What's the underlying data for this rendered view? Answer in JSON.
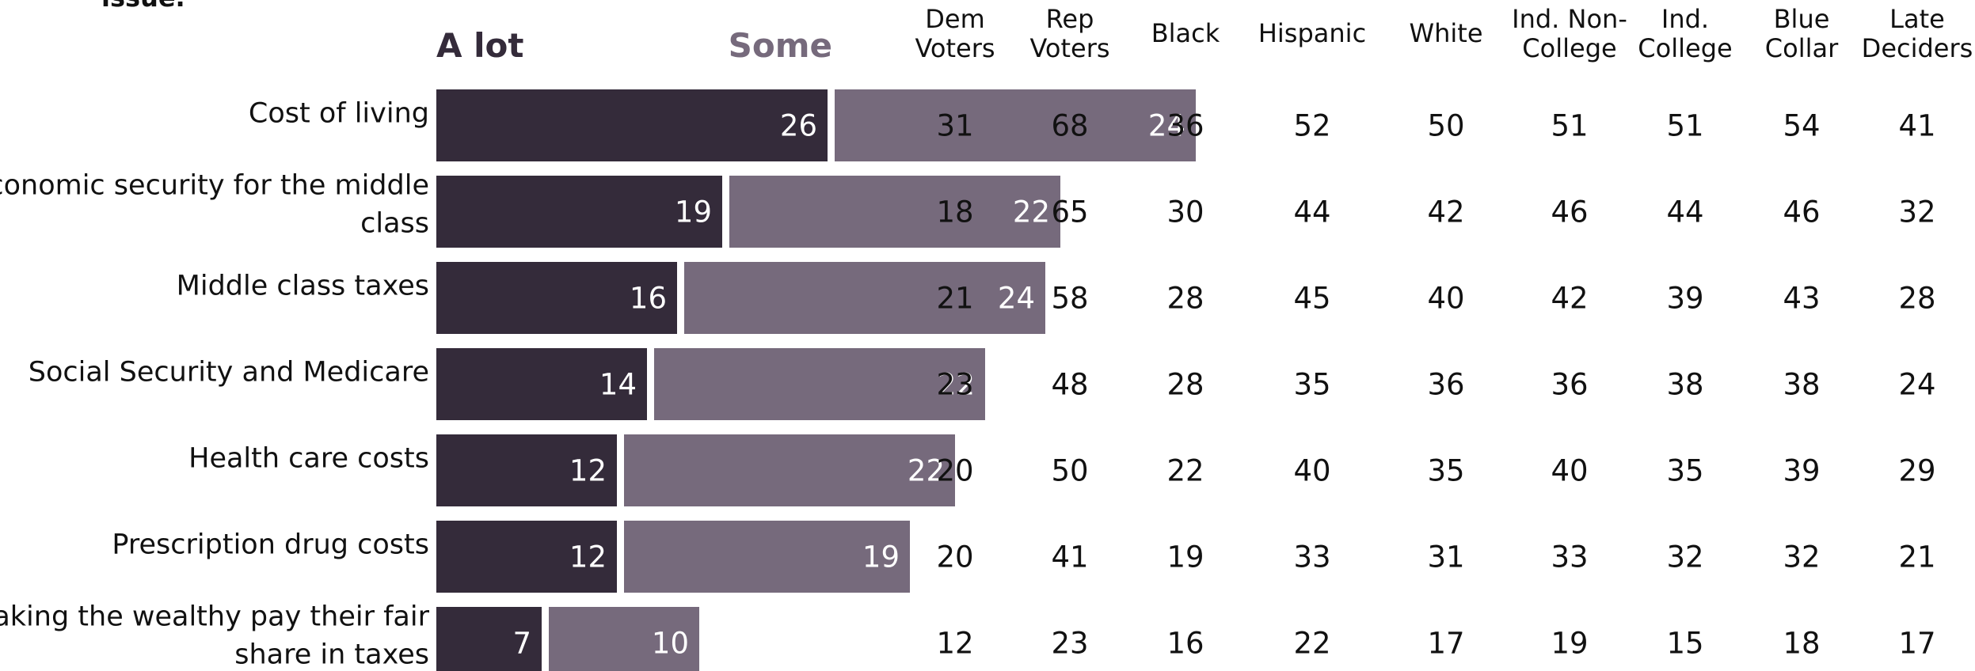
{
  "chart_data": {
    "type": "bar",
    "orientation": "horizontal",
    "stacked": true,
    "title_fragment": "issue.",
    "legend": [
      "A lot",
      "Some"
    ],
    "categories": [
      "Cost of living",
      "Economic security for the middle class",
      "Middle class taxes",
      "Social Security and Medicare",
      "Health care costs",
      "Prescription drug costs",
      "Making the wealthy pay their fair share in taxes"
    ],
    "category_lines": [
      [
        "Cost of living"
      ],
      [
        "Economic security for the middle",
        "class"
      ],
      [
        "Middle class taxes"
      ],
      [
        "Social Security and Medicare"
      ],
      [
        "Health care costs"
      ],
      [
        "Prescription drug costs"
      ],
      [
        "Making the wealthy pay their fair",
        "share in taxes"
      ]
    ],
    "series": [
      {
        "name": "A lot",
        "color": "#342b3a",
        "values": [
          26,
          19,
          16,
          14,
          12,
          12,
          7
        ]
      },
      {
        "name": "Some",
        "color": "#766a7c",
        "values": [
          24,
          22,
          24,
          22,
          22,
          19,
          10
        ]
      }
    ],
    "xlim": [
      0,
      50
    ],
    "grid": false,
    "legend_position": "top",
    "table": {
      "columns": [
        [
          "Dem",
          "Voters"
        ],
        [
          "Rep",
          "Voters"
        ],
        [
          "Black"
        ],
        [
          "Hispanic"
        ],
        [
          "White"
        ],
        [
          "Ind. Non-",
          "College"
        ],
        [
          "Ind.",
          "College"
        ],
        [
          "Blue",
          "Collar"
        ],
        [
          "Late",
          "Deciders"
        ]
      ],
      "rows": [
        [
          31,
          68,
          36,
          52,
          50,
          51,
          51,
          54,
          41
        ],
        [
          18,
          65,
          30,
          44,
          42,
          46,
          44,
          46,
          32
        ],
        [
          21,
          58,
          28,
          45,
          40,
          42,
          39,
          43,
          28
        ],
        [
          23,
          48,
          28,
          35,
          36,
          36,
          38,
          38,
          24
        ],
        [
          20,
          50,
          22,
          40,
          35,
          40,
          35,
          39,
          29
        ],
        [
          20,
          41,
          19,
          33,
          31,
          33,
          32,
          32,
          21
        ],
        [
          12,
          23,
          16,
          22,
          17,
          19,
          15,
          18,
          17
        ]
      ]
    }
  }
}
